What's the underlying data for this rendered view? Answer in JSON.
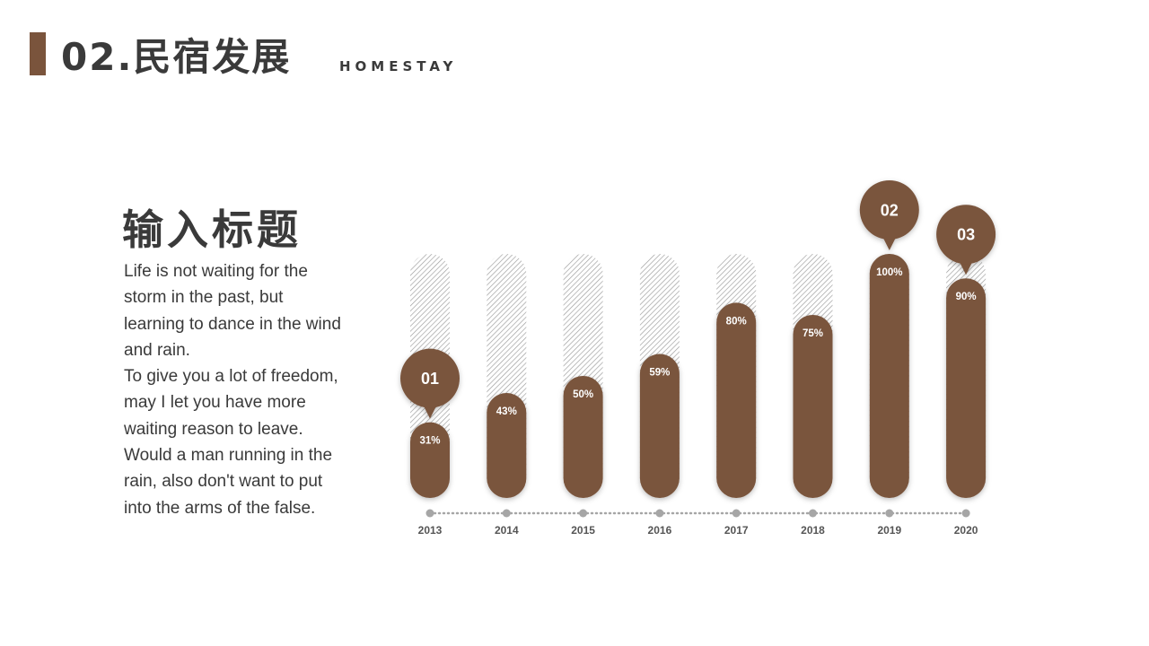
{
  "header": {
    "title": "02.民宿发展",
    "subtitle": "HOMESTAY"
  },
  "content": {
    "title": "输入标题",
    "paragraphs": [
      "Life is not waiting for the storm in the past, but learning to dance in the wind and rain.",
      "To give you a lot of freedom, may I let you have more waiting reason to leave. Would a man running in the rain, also don't want to put into the arms of the false."
    ]
  },
  "colors": {
    "accent": "#7a543c",
    "text": "#3a3a3a",
    "track_hatch": "#9a9a9a",
    "timeline": "#a6a6a6"
  },
  "chart_data": {
    "type": "bar",
    "categories": [
      "2013",
      "2014",
      "2015",
      "2016",
      "2017",
      "2018",
      "2019",
      "2020"
    ],
    "values": [
      31,
      43,
      50,
      59,
      80,
      75,
      100,
      90
    ],
    "value_labels": [
      "31%",
      "43%",
      "50%",
      "59%",
      "80%",
      "75%",
      "100%",
      "90%"
    ],
    "ylim": [
      0,
      100
    ],
    "callouts": [
      {
        "label": "01",
        "category": "2013"
      },
      {
        "label": "02",
        "category": "2019"
      },
      {
        "label": "03",
        "category": "2020"
      }
    ]
  }
}
